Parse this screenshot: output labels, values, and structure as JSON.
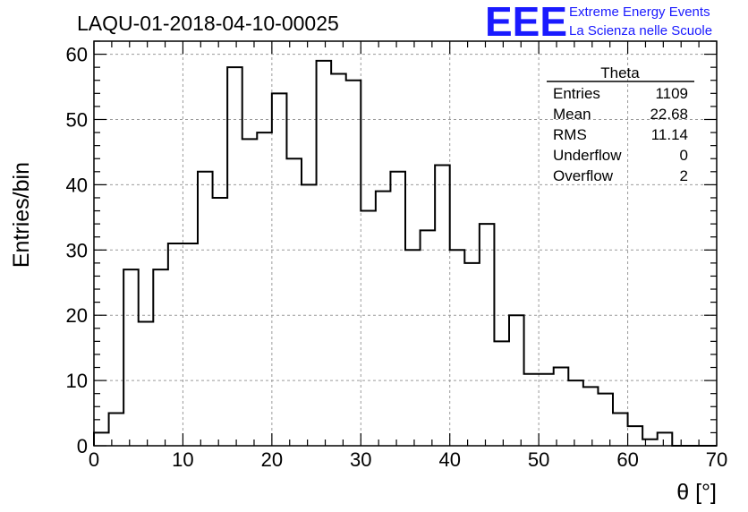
{
  "chart_data": {
    "type": "histogram",
    "title": "LAQU-01-2018-04-10-00025",
    "xlabel": "θ [°]",
    "ylabel": "Entries/bin",
    "xlim": [
      0,
      70
    ],
    "ylim": [
      0,
      62
    ],
    "grid": true,
    "bin_width": 1.6667,
    "xticks": [
      0,
      10,
      20,
      30,
      40,
      50,
      60,
      70
    ],
    "yticks": [
      0,
      10,
      20,
      30,
      40,
      50,
      60
    ],
    "bin_edges": [
      0,
      1.6667,
      3.3333,
      5,
      6.6667,
      8.3333,
      10,
      11.6667,
      13.3333,
      15,
      16.6667,
      18.3333,
      20,
      21.6667,
      23.3333,
      25,
      26.6667,
      28.3333,
      30,
      31.6667,
      33.3333,
      35,
      36.6667,
      38.3333,
      40,
      41.6667,
      43.3333,
      45,
      46.6667,
      48.3333,
      50,
      51.6667,
      53.3333,
      55,
      56.6667,
      58.3333,
      60,
      61.6667,
      63.3333,
      65,
      66.6667,
      68.3333,
      70
    ],
    "counts": [
      2,
      5,
      27,
      19,
      27,
      31,
      31,
      42,
      38,
      58,
      47,
      48,
      54,
      44,
      40,
      59,
      57,
      56,
      36,
      39,
      42,
      30,
      33,
      43,
      30,
      28,
      34,
      16,
      20,
      11,
      11,
      12,
      10,
      9,
      8,
      5,
      3,
      1,
      2,
      0,
      0,
      0
    ],
    "stats_box": {
      "title": "Theta",
      "rows": [
        {
          "label": "Entries",
          "value": "1109"
        },
        {
          "label": "Mean",
          "value": "22.68"
        },
        {
          "label": "RMS",
          "value": "11.14"
        },
        {
          "label": "Underflow",
          "value": "0"
        },
        {
          "label": "Overflow",
          "value": "2"
        }
      ]
    }
  },
  "logo": {
    "text": "EEE",
    "line1": "Extreme Energy Events",
    "line2": "La Scienza nelle Scuole",
    "color": "#1a1aff"
  },
  "colors": {
    "line": "#000000",
    "grid": "#9a9a9a"
  }
}
